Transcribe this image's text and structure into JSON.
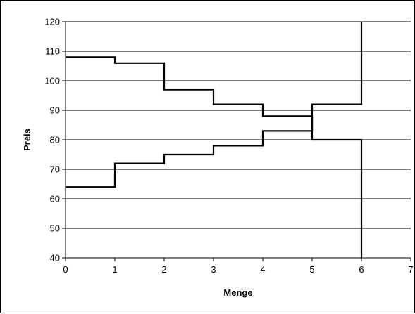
{
  "chart_data": {
    "type": "line",
    "title": "",
    "xlabel": "Menge",
    "ylabel": "Preis",
    "xlim": [
      0,
      7
    ],
    "ylim": [
      40,
      120
    ],
    "x_ticks": [
      "0",
      "1",
      "2",
      "3",
      "4",
      "5",
      "6",
      "7"
    ],
    "y_ticks": [
      "40",
      "50",
      "60",
      "70",
      "80",
      "90",
      "100",
      "110",
      "120"
    ],
    "grid": "horizontal",
    "legend": "none",
    "step": true,
    "colors": {
      "series": "#000000",
      "grid": "#000000",
      "background": "#ffffff"
    },
    "series": [
      {
        "values": [
          {
            "x": 0,
            "y": 108
          },
          {
            "x": 1,
            "y": 108
          },
          {
            "x": 1,
            "y": 106
          },
          {
            "x": 2,
            "y": 106
          },
          {
            "x": 2,
            "y": 97
          },
          {
            "x": 3,
            "y": 97
          },
          {
            "x": 3,
            "y": 92
          },
          {
            "x": 4,
            "y": 92
          },
          {
            "x": 4,
            "y": 88
          },
          {
            "x": 5,
            "y": 88
          },
          {
            "x": 5,
            "y": 80
          },
          {
            "x": 6,
            "y": 80
          },
          {
            "x": 6,
            "y": 40
          }
        ]
      },
      {
        "values": [
          {
            "x": 0,
            "y": 64
          },
          {
            "x": 1,
            "y": 64
          },
          {
            "x": 1,
            "y": 72
          },
          {
            "x": 2,
            "y": 72
          },
          {
            "x": 2,
            "y": 75
          },
          {
            "x": 3,
            "y": 75
          },
          {
            "x": 3,
            "y": 78
          },
          {
            "x": 4,
            "y": 78
          },
          {
            "x": 4,
            "y": 83
          },
          {
            "x": 5,
            "y": 83
          },
          {
            "x": 5,
            "y": 92
          },
          {
            "x": 6,
            "y": 92
          },
          {
            "x": 6,
            "y": 120
          }
        ]
      }
    ]
  }
}
